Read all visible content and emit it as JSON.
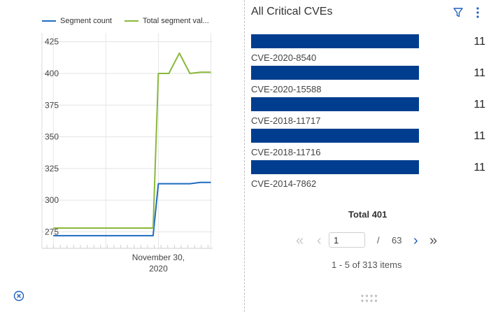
{
  "chart_data": {
    "type": "line",
    "series": [
      {
        "name": "Segment count",
        "color": "#1f6bbf",
        "points": [
          [
            "2020-11-20",
            272
          ],
          [
            "2020-11-21",
            272
          ],
          [
            "2020-11-22",
            272
          ],
          [
            "2020-11-23",
            272
          ],
          [
            "2020-11-24",
            272
          ],
          [
            "2020-11-25",
            272
          ],
          [
            "2020-11-26",
            272
          ],
          [
            "2020-11-27",
            272
          ],
          [
            "2020-11-28",
            272
          ],
          [
            "2020-11-29",
            272
          ],
          [
            "2020-11-29T12:00",
            272
          ],
          [
            "2020-11-30",
            313
          ],
          [
            "2020-12-01",
            313
          ],
          [
            "2020-12-02",
            313
          ],
          [
            "2020-12-03",
            313
          ],
          [
            "2020-12-04",
            314
          ],
          [
            "2020-12-05",
            314
          ]
        ]
      },
      {
        "name": "Total segment val...",
        "color": "#8ab83a",
        "points": [
          [
            "2020-11-20",
            278
          ],
          [
            "2020-11-21",
            278
          ],
          [
            "2020-11-22",
            278
          ],
          [
            "2020-11-23",
            278
          ],
          [
            "2020-11-24",
            278
          ],
          [
            "2020-11-25",
            278
          ],
          [
            "2020-11-26",
            278
          ],
          [
            "2020-11-27",
            278
          ],
          [
            "2020-11-28",
            278
          ],
          [
            "2020-11-29",
            278
          ],
          [
            "2020-11-29T12:00",
            278
          ],
          [
            "2020-11-30",
            400
          ],
          [
            "2020-12-01",
            400
          ],
          [
            "2020-12-02",
            416
          ],
          [
            "2020-12-03",
            400
          ],
          [
            "2020-12-04",
            401
          ],
          [
            "2020-12-05",
            401
          ]
        ]
      }
    ],
    "ylim": [
      262,
      432
    ],
    "yticks": [
      275,
      300,
      325,
      350,
      375,
      400,
      425
    ],
    "xlim": [
      "2020-11-18T22:00",
      "2020-12-05T04:00"
    ],
    "xtick_label_lines": [
      "November 30,",
      "2020"
    ],
    "xtick_date": "2020-11-30",
    "xlabel": "",
    "ylabel": "",
    "grid": true,
    "legend_position": "top"
  },
  "legend": {
    "items": [
      {
        "label": "Segment count",
        "color": "#1f6bbf"
      },
      {
        "label": "Total segment val...",
        "color": "#8ab83a"
      }
    ]
  },
  "right_panel": {
    "title": "All Critical CVEs",
    "bar_color": "#003d8f",
    "cves": [
      {
        "id": "CVE-2020-8540",
        "value": "11"
      },
      {
        "id": "CVE-2020-15588",
        "value": "11"
      },
      {
        "id": "CVE-2018-11717",
        "value": "11"
      },
      {
        "id": "CVE-2018-11716",
        "value": "11"
      },
      {
        "id": "CVE-2014-7862",
        "value": "11"
      }
    ],
    "total_label": "Total 401"
  },
  "pager": {
    "first_glyph": "«",
    "prev_glyph": "‹",
    "current_page": "1",
    "separator": "/",
    "page_count": "63",
    "next_glyph": "›",
    "last_glyph": "»",
    "summary": "1 - 5 of 313 items"
  },
  "icons": {
    "filter": "filter-icon",
    "more": "more-vertical-icon",
    "close": "close-circle-icon",
    "drag": "drag-handle-icon"
  },
  "colors": {
    "accent": "#1f5fc2",
    "bar": "#003d8f",
    "series_blue": "#1f6bbf",
    "series_green": "#8ab83a"
  }
}
